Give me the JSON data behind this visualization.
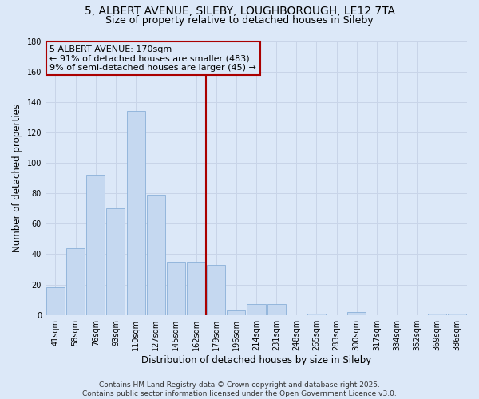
{
  "title_line1": "5, ALBERT AVENUE, SILEBY, LOUGHBOROUGH, LE12 7TA",
  "title_line2": "Size of property relative to detached houses in Sileby",
  "xlabel": "Distribution of detached houses by size in Sileby",
  "ylabel": "Number of detached properties",
  "categories": [
    "41sqm",
    "58sqm",
    "76sqm",
    "93sqm",
    "110sqm",
    "127sqm",
    "145sqm",
    "162sqm",
    "179sqm",
    "196sqm",
    "214sqm",
    "231sqm",
    "248sqm",
    "265sqm",
    "283sqm",
    "300sqm",
    "317sqm",
    "334sqm",
    "352sqm",
    "369sqm",
    "386sqm"
  ],
  "values": [
    18,
    44,
    92,
    70,
    134,
    79,
    35,
    35,
    33,
    3,
    7,
    7,
    0,
    1,
    0,
    2,
    0,
    0,
    0,
    1,
    1
  ],
  "bar_color": "#c5d8f0",
  "bar_edge_color": "#8ab0d8",
  "vline_color": "#aa0000",
  "annotation_text": "5 ALBERT AVENUE: 170sqm\n← 91% of detached houses are smaller (483)\n9% of semi-detached houses are larger (45) →",
  "ylim": [
    0,
    180
  ],
  "yticks": [
    0,
    20,
    40,
    60,
    80,
    100,
    120,
    140,
    160,
    180
  ],
  "grid_color": "#c8d4e8",
  "background_color": "#dce8f8",
  "footer_text": "Contains HM Land Registry data © Crown copyright and database right 2025.\nContains public sector information licensed under the Open Government Licence v3.0.",
  "title_fontsize": 10,
  "subtitle_fontsize": 9,
  "axis_label_fontsize": 8.5,
  "tick_fontsize": 7,
  "footer_fontsize": 6.5,
  "annotation_fontsize": 8
}
